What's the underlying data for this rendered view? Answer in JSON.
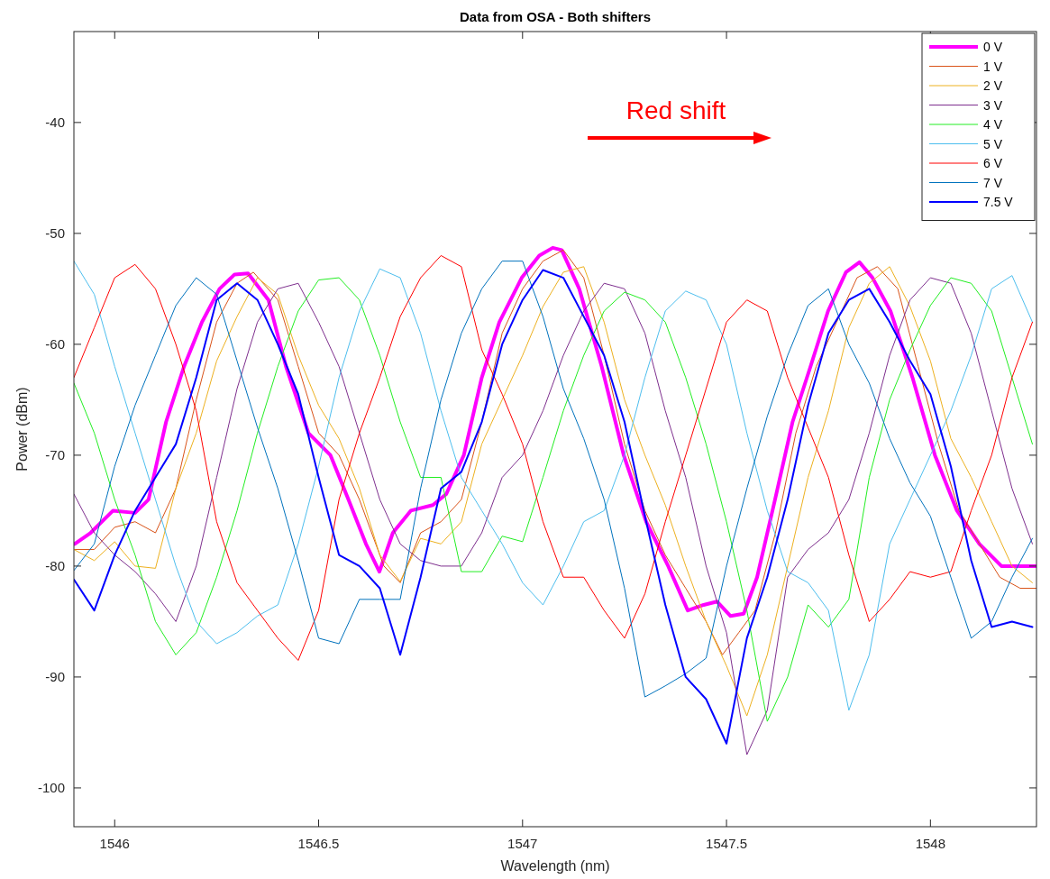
{
  "chart_data": {
    "type": "line",
    "title": "Data from OSA - Both shifters",
    "xlabel": "Wavelength (nm)",
    "ylabel": "Power (dBm)",
    "xlim": [
      1545.9,
      1548.26
    ],
    "ylim": [
      -103.5,
      -31.8
    ],
    "xticks": [
      1546,
      1546.5,
      1547,
      1547.5,
      1548
    ],
    "yticks": [
      -100,
      -90,
      -80,
      -70,
      -60,
      -50,
      -40
    ],
    "grid": false,
    "legend": "top right",
    "marker": "none",
    "line_style": "solid",
    "annotations": [
      "Red shift"
    ],
    "x": [
      1545.9,
      1545.95,
      1546.0,
      1546.05,
      1546.1,
      1546.15,
      1546.2,
      1546.25,
      1546.3,
      1546.35,
      1546.4,
      1546.45,
      1546.5,
      1546.55,
      1546.6,
      1546.65,
      1546.7,
      1546.75,
      1546.8,
      1546.85,
      1546.9,
      1546.95,
      1547.0,
      1547.05,
      1547.1,
      1547.15,
      1547.2,
      1547.25,
      1547.3,
      1547.35,
      1547.4,
      1547.45,
      1547.5,
      1547.55,
      1547.6,
      1547.65,
      1547.7,
      1547.75,
      1547.8,
      1547.85,
      1547.9,
      1547.95,
      1548.0,
      1548.05,
      1548.1,
      1548.15,
      1548.2,
      1548.25
    ],
    "series": [
      {
        "name": "0 V",
        "color": "#ff00ff",
        "x": [
          1545.902,
          1545.941,
          1545.996,
          1546.05,
          1546.083,
          1546.126,
          1546.17,
          1546.214,
          1546.257,
          1546.294,
          1546.327,
          1546.377,
          1546.42,
          1546.475,
          1546.529,
          1546.573,
          1546.616,
          1546.649,
          1546.682,
          1546.726,
          1546.78,
          1546.813,
          1546.856,
          1546.9,
          1546.943,
          1546.998,
          1547.041,
          1547.074,
          1547.096,
          1547.139,
          1547.194,
          1547.248,
          1547.303,
          1547.357,
          1547.405,
          1547.444,
          1547.477,
          1547.51,
          1547.542,
          1547.575,
          1547.619,
          1547.662,
          1547.706,
          1547.749,
          1547.793,
          1547.826,
          1547.858,
          1547.902,
          1547.956,
          1548.011,
          1548.065,
          1548.12,
          1548.174,
          1548.229,
          1548.26
        ],
        "values": [
          -78,
          -77,
          -75,
          -75.2,
          -74,
          -67,
          -62,
          -58,
          -55,
          -53.7,
          -53.6,
          -56,
          -62,
          -68,
          -70,
          -74,
          -78,
          -80.5,
          -77,
          -75,
          -74.5,
          -73.5,
          -70,
          -63,
          -58,
          -54,
          -52,
          -51.3,
          -51.5,
          -55,
          -62,
          -70,
          -76,
          -80,
          -84,
          -83.5,
          -83.2,
          -84.5,
          -84.3,
          -81,
          -74,
          -67,
          -62,
          -57,
          -53.5,
          -52.6,
          -54,
          -57,
          -63,
          -70,
          -75,
          -78,
          -80,
          -80,
          -80
        ]
      },
      {
        "name": "1 V",
        "color": "#d95319",
        "x": [
          1545.902,
          1545.95,
          1546.0,
          1546.05,
          1546.1,
          1546.15,
          1546.2,
          1546.25,
          1546.3,
          1546.34,
          1546.4,
          1546.45,
          1546.5,
          1546.55,
          1546.6,
          1546.66,
          1546.7,
          1546.75,
          1546.8,
          1546.85,
          1546.9,
          1546.95,
          1547.0,
          1547.05,
          1547.1,
          1547.15,
          1547.2,
          1547.25,
          1547.3,
          1547.35,
          1547.4,
          1547.45,
          1547.49,
          1547.53,
          1547.57,
          1547.62,
          1547.67,
          1547.72,
          1547.77,
          1547.82,
          1547.87,
          1547.92,
          1547.97,
          1548.02,
          1548.07,
          1548.12,
          1548.17,
          1548.22,
          1548.26
        ],
        "values": [
          -78.5,
          -78.5,
          -76.5,
          -76,
          -77,
          -73,
          -65,
          -58,
          -54.5,
          -53.5,
          -56,
          -62,
          -68,
          -70,
          -74,
          -80,
          -81.5,
          -77,
          -76,
          -74,
          -67,
          -59,
          -55,
          -52.5,
          -51.5,
          -54,
          -61,
          -69,
          -75,
          -79,
          -82,
          -85,
          -88,
          -86,
          -84,
          -77,
          -68,
          -62,
          -58,
          -54,
          -53,
          -55,
          -62,
          -69,
          -75,
          -78,
          -81,
          -82,
          -82
        ]
      },
      {
        "name": "2 V",
        "color": "#edb120",
        "values": [
          -78.5,
          -79.5,
          -77.8,
          -80,
          -80.2,
          -73,
          -68,
          -61.5,
          -57.5,
          -54,
          -55.5,
          -61,
          -65.5,
          -68.5,
          -73,
          -79,
          -81.4,
          -77.5,
          -78,
          -76,
          -69,
          -65,
          -61,
          -56.6,
          -53.5,
          -53,
          -58,
          -65,
          -70,
          -74.5,
          -80,
          -85,
          -89,
          -93.5,
          -88,
          -80,
          -72,
          -66,
          -58.5,
          -54.5,
          -53,
          -56.6,
          -61.5,
          -68.5,
          -72,
          -76,
          -80,
          -81.5
        ]
      },
      {
        "name": "3 V",
        "color": "#7e2f8e",
        "values": [
          -73.5,
          -77,
          -79,
          -80.5,
          -82.5,
          -85,
          -80,
          -72,
          -64,
          -58,
          -55,
          -54.5,
          -58,
          -62,
          -68,
          -74,
          -78,
          -79.5,
          -80,
          -80,
          -77,
          -72,
          -70,
          -66,
          -61,
          -57,
          -54.5,
          -55,
          -59,
          -66,
          -72,
          -80,
          -86,
          -97,
          -93,
          -81,
          -78.5,
          -77,
          -74,
          -68,
          -61,
          -56,
          -54,
          -54.5,
          -59,
          -66,
          -73,
          -78
        ]
      },
      {
        "name": "4 V",
        "color": "#22ee22",
        "values": [
          -63.5,
          -68,
          -74,
          -79,
          -85,
          -88,
          -86,
          -81,
          -75,
          -68,
          -62,
          -57,
          -54.2,
          -54,
          -56,
          -61,
          -67,
          -72,
          -72,
          -80.5,
          -80.5,
          -77.3,
          -77.8,
          -72,
          -66,
          -61,
          -57,
          -55.3,
          -56,
          -58,
          -63,
          -69,
          -76,
          -84,
          -94,
          -90,
          -83.5,
          -85.5,
          -83,
          -72,
          -65,
          -60.5,
          -56.5,
          -54,
          -54.5,
          -57,
          -63,
          -69
        ]
      },
      {
        "name": "5 V",
        "color": "#4dbeee",
        "values": [
          -52.5,
          -55.5,
          -62,
          -68,
          -74,
          -80,
          -85,
          -87,
          -86,
          -84.5,
          -83.5,
          -78,
          -71,
          -63,
          -57,
          -53.2,
          -54,
          -59,
          -66,
          -72,
          -75,
          -78,
          -81.5,
          -83.5,
          -80,
          -76,
          -75,
          -70,
          -63,
          -57,
          -55.2,
          -56,
          -60,
          -68,
          -75,
          -80.5,
          -81.5,
          -84,
          -93,
          -88,
          -78,
          -74,
          -70,
          -66,
          -61,
          -55,
          -53.8,
          -58
        ]
      },
      {
        "name": "6 V",
        "color": "#ff0000",
        "values": [
          -63,
          -58.5,
          -54,
          -52.8,
          -55,
          -60,
          -66,
          -76,
          -81.5,
          -84,
          -86.5,
          -88.5,
          -84,
          -74,
          -68,
          -63,
          -57.5,
          -54,
          -52,
          -53,
          -60.5,
          -64.5,
          -69,
          -76,
          -81,
          -81,
          -84,
          -86.5,
          -82.5,
          -76,
          -70,
          -64,
          -58,
          -56,
          -57,
          -63,
          -67.5,
          -72,
          -79,
          -85,
          -83,
          -80.5,
          -81,
          -80.5,
          -75,
          -70,
          -63,
          -58
        ]
      },
      {
        "name": "7 V",
        "color": "#0072bd",
        "values": [
          -80.4,
          -78,
          -71,
          -65.5,
          -61,
          -56.5,
          -54,
          -55.5,
          -61.5,
          -67.5,
          -73,
          -79.5,
          -86.5,
          -87,
          -83,
          -83,
          -83,
          -73,
          -65,
          -59,
          -55,
          -52.5,
          -52.5,
          -57.5,
          -64,
          -68.5,
          -74,
          -82,
          -91.8,
          -90.8,
          -89.7,
          -88.3,
          -80,
          -73,
          -66.5,
          -61,
          -56.5,
          -55,
          -60,
          -63.5,
          -68.5,
          -72.5,
          -75.5,
          -81,
          -86.5,
          -85,
          -81,
          -77.5
        ]
      },
      {
        "name": "7.5 V",
        "color": "#0000ff",
        "values": [
          -81.2,
          -84,
          -79,
          -75,
          -72,
          -69,
          -63,
          -56,
          -54.5,
          -56,
          -60,
          -64.5,
          -72,
          -79,
          -80,
          -82,
          -88,
          -81,
          -73,
          -71.5,
          -67,
          -60,
          -56,
          -53.3,
          -54,
          -57.5,
          -61,
          -67,
          -75.5,
          -83.5,
          -90,
          -92,
          -96,
          -86.5,
          -81,
          -74,
          -65.5,
          -59,
          -56,
          -55,
          -58,
          -61.5,
          -64.5,
          -71,
          -79.5,
          -85.5,
          -85,
          -85.5
        ]
      }
    ]
  }
}
